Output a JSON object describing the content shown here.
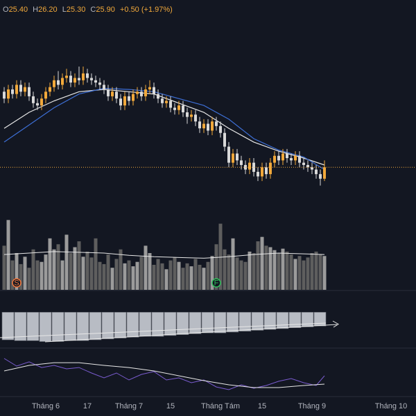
{
  "chart_data": {
    "type": "candlestick",
    "header": {
      "labels": [
        "O",
        "H",
        "L",
        "C"
      ],
      "values": [
        "25.40",
        "26.20",
        "25.30",
        "25.90"
      ],
      "change": "+0.50 (+1.97%)"
    },
    "xlim": [
      -1,
      99
    ],
    "xticks": [
      {
        "value": 10,
        "label": "Tháng 6"
      },
      {
        "value": 20,
        "label": "17"
      },
      {
        "value": 30,
        "label": "Tháng 7"
      },
      {
        "value": 40,
        "label": "15"
      },
      {
        "value": 52,
        "label": "Tháng Tám"
      },
      {
        "value": 62,
        "label": "15"
      },
      {
        "value": 74,
        "label": "Tháng 9"
      },
      {
        "value": 93,
        "label": "Tháng 10"
      }
    ],
    "ylim": [
      24,
      32.6
    ],
    "up_color": "#f2a93b",
    "down_color": "#d9d9d9",
    "open": [
      29.2,
      28.9,
      29.3,
      29.1,
      29.5,
      29.2,
      29.4,
      29.0,
      28.7,
      28.6,
      28.9,
      29.2,
      29.4,
      29.7,
      29.5,
      29.8,
      29.9,
      29.6,
      29.8,
      29.7,
      30.0,
      29.8,
      29.7,
      29.6,
      29.5,
      29.3,
      29.0,
      29.2,
      28.9,
      28.6,
      29.0,
      28.8,
      29.1,
      29.2,
      29.0,
      29.3,
      29.4,
      29.1,
      28.9,
      28.7,
      28.8,
      28.5,
      28.4,
      28.6,
      28.3,
      28.1,
      28.2,
      27.9,
      27.6,
      27.8,
      27.5,
      27.9,
      27.7,
      27.4,
      26.8,
      26.1,
      26.5,
      26.2,
      26.0,
      25.8,
      26.1,
      25.7,
      25.5,
      25.9,
      25.6,
      26.1,
      26.4,
      26.2,
      26.5,
      26.3,
      26.2,
      26.4,
      26.1,
      26.0,
      25.9,
      25.8,
      25.6,
      25.4
    ],
    "high": [
      29.4,
      29.5,
      29.5,
      29.7,
      29.7,
      29.6,
      29.6,
      29.2,
      28.9,
      29.1,
      29.4,
      29.6,
      29.9,
      30.1,
      30.0,
      30.2,
      30.1,
      30.0,
      30.3,
      30.3,
      30.2,
      30.0,
      29.9,
      29.8,
      29.7,
      29.5,
      29.4,
      29.4,
      29.1,
      29.2,
      29.2,
      29.3,
      29.4,
      29.4,
      29.5,
      29.7,
      29.6,
      29.3,
      29.1,
      29.0,
      29.0,
      28.7,
      28.8,
      28.8,
      28.5,
      28.4,
      28.4,
      28.1,
      28.0,
      28.0,
      28.1,
      28.1,
      27.9,
      27.6,
      27.0,
      26.7,
      26.7,
      26.4,
      26.2,
      26.3,
      26.3,
      25.9,
      26.1,
      26.1,
      26.3,
      26.6,
      26.6,
      26.7,
      26.7,
      26.5,
      26.6,
      26.6,
      26.3,
      26.2,
      26.1,
      26.0,
      25.8,
      26.2
    ],
    "low": [
      28.7,
      28.7,
      28.9,
      28.9,
      29.0,
      29.0,
      28.8,
      28.5,
      28.4,
      28.4,
      28.7,
      29.0,
      29.2,
      29.3,
      29.3,
      29.6,
      29.4,
      29.4,
      29.5,
      29.5,
      29.6,
      29.5,
      29.4,
      29.3,
      29.1,
      28.8,
      28.8,
      28.7,
      28.4,
      28.4,
      28.6,
      28.6,
      28.9,
      28.8,
      28.8,
      29.1,
      28.9,
      28.7,
      28.5,
      28.5,
      28.3,
      28.2,
      28.2,
      28.1,
      27.8,
      27.9,
      27.7,
      27.4,
      27.4,
      27.3,
      27.3,
      27.5,
      27.2,
      26.6,
      25.9,
      25.9,
      26.0,
      25.8,
      25.6,
      25.6,
      25.5,
      25.3,
      25.3,
      25.4,
      25.4,
      25.9,
      26.0,
      26.0,
      26.1,
      26.0,
      26.0,
      25.9,
      25.8,
      25.7,
      25.6,
      25.4,
      25.1,
      25.3
    ],
    "close": [
      28.9,
      29.3,
      29.1,
      29.5,
      29.2,
      29.4,
      29.0,
      28.7,
      28.6,
      28.9,
      29.2,
      29.4,
      29.7,
      29.5,
      29.8,
      29.9,
      29.6,
      29.8,
      29.7,
      30.0,
      29.8,
      29.7,
      29.6,
      29.5,
      29.3,
      29.0,
      29.2,
      28.9,
      28.6,
      29.0,
      28.8,
      29.1,
      29.2,
      29.0,
      29.3,
      29.4,
      29.1,
      28.9,
      28.7,
      28.8,
      28.5,
      28.4,
      28.6,
      28.3,
      28.1,
      28.2,
      27.9,
      27.6,
      27.8,
      27.5,
      27.9,
      27.7,
      27.4,
      26.8,
      26.1,
      26.5,
      26.2,
      26.0,
      25.8,
      26.1,
      25.7,
      25.5,
      25.9,
      25.6,
      26.1,
      26.4,
      26.2,
      26.5,
      26.3,
      26.2,
      26.4,
      26.1,
      26.0,
      25.9,
      25.8,
      25.6,
      25.4,
      25.9
    ],
    "lines": [
      {
        "color": "#e8e8e8",
        "x": [
          0,
          6,
          12,
          18,
          24,
          30,
          36,
          42,
          48,
          54,
          60,
          66,
          72,
          77
        ],
        "values": [
          27.6,
          28.3,
          28.8,
          29.2,
          29.3,
          29.2,
          29.1,
          28.7,
          28.3,
          27.6,
          27.0,
          26.6,
          26.3,
          26.0
        ]
      },
      {
        "color": "#3d6fd6",
        "x": [
          0,
          6,
          12,
          18,
          24,
          30,
          36,
          42,
          48,
          54,
          60,
          66,
          72,
          77
        ],
        "values": [
          27.0,
          27.75,
          28.5,
          29.1,
          29.35,
          29.3,
          29.2,
          28.9,
          28.6,
          28.0,
          27.15,
          26.65,
          26.35,
          25.8
        ]
      }
    ],
    "volume": {
      "ylim": [
        0,
        100
      ],
      "up_color": "#9b9b9b",
      "down_color": "#5e5e5e",
      "values": [
        60,
        95,
        40,
        50,
        35,
        45,
        30,
        55,
        40,
        38,
        48,
        70,
        55,
        62,
        40,
        75,
        50,
        58,
        66,
        45,
        52,
        44,
        70,
        38,
        35,
        48,
        30,
        42,
        55,
        36,
        40,
        32,
        38,
        45,
        60,
        50,
        34,
        42,
        36,
        28,
        40,
        44,
        38,
        30,
        36,
        32,
        42,
        34,
        30,
        38,
        46,
        62,
        90,
        55,
        48,
        70,
        44,
        40,
        38,
        52,
        50,
        66,
        72,
        60,
        58,
        54,
        50,
        56,
        52,
        48,
        42,
        46,
        40,
        44,
        50,
        52,
        48,
        46
      ],
      "line": {
        "color": "#e8e8e8",
        "x": [
          0,
          6,
          12,
          18,
          24,
          30,
          36,
          42,
          48,
          54,
          60,
          66,
          72,
          77
        ],
        "values": [
          48,
          50,
          52,
          51,
          50,
          47,
          45,
          44,
          43,
          45,
          48,
          50,
          49,
          48
        ]
      },
      "markers": [
        {
          "text": "S",
          "x": 3,
          "color": "#f2763b"
        },
        {
          "text": "F",
          "x": 51,
          "color": "#2fbf5a"
        }
      ]
    },
    "pane2": {
      "type": "bar",
      "ylim": [
        -40,
        10
      ],
      "color": "#b8bcc4",
      "x": [
        0,
        3,
        6,
        9,
        12,
        15,
        18,
        21,
        24,
        27,
        30,
        33,
        36,
        39,
        42,
        45,
        48,
        51,
        54,
        57,
        60,
        63,
        66,
        69,
        72,
        75
      ],
      "values": [
        -32,
        -33,
        -33,
        -34,
        -34,
        -33,
        -33,
        -32,
        -31,
        -30,
        -29,
        -28,
        -28,
        -27,
        -26,
        -25,
        -24,
        -24,
        -23,
        -22,
        -21,
        -20,
        -19,
        -18,
        -17,
        -16
      ]
    },
    "pane3": {
      "type": "line",
      "ylim": [
        20,
        70
      ],
      "lines": [
        {
          "color": "#7a5cd0",
          "x": [
            0,
            3,
            6,
            9,
            12,
            15,
            18,
            21,
            24,
            27,
            30,
            33,
            36,
            39,
            42,
            45,
            48,
            51,
            54,
            57,
            60,
            63,
            66,
            69,
            72,
            75,
            77
          ],
          "values": [
            61.4,
            53.6,
            57.9,
            52.1,
            54.3,
            50.7,
            52.1,
            46.4,
            41.4,
            46.4,
            39.3,
            45,
            47.9,
            39.3,
            41.4,
            36.4,
            39.3,
            32.1,
            29.3,
            34.3,
            30.7,
            33.6,
            37.9,
            40.7,
            36.4,
            33.6,
            43.6
          ]
        },
        {
          "color": "#e8e8e8",
          "x": [
            0,
            6,
            12,
            18,
            24,
            30,
            36,
            42,
            48,
            54,
            60,
            66,
            72,
            77
          ],
          "values": [
            48.6,
            54.3,
            57.1,
            57.1,
            54.3,
            52.1,
            48.6,
            43.6,
            38.6,
            34.3,
            31.4,
            31.4,
            33.6,
            35
          ]
        }
      ]
    }
  }
}
